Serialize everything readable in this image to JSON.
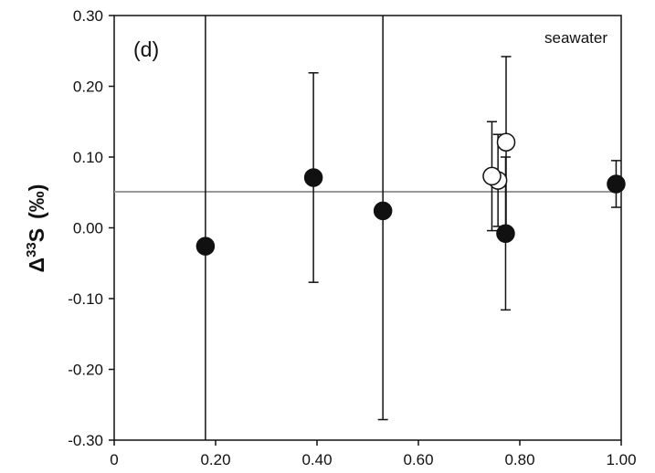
{
  "chart_data": {
    "type": "scatter",
    "panel_label": "(d)",
    "annotation": "seawater",
    "ylabel": {
      "prefix": "Δ",
      "superscript": "33",
      "symbol": "S",
      "unit": "(‰)"
    },
    "xlabel": "",
    "xlim": [
      0.0,
      1.0
    ],
    "ylim": [
      -0.3,
      0.3
    ],
    "xticks": [
      {
        "value": 0.0,
        "label": "0"
      },
      {
        "value": 0.2,
        "label": "0.20"
      },
      {
        "value": 0.4,
        "label": "0.40"
      },
      {
        "value": 0.6,
        "label": "0.60"
      },
      {
        "value": 0.8,
        "label": "0.80"
      },
      {
        "value": 1.0,
        "label": "1.00"
      }
    ],
    "yticks": [
      {
        "value": 0.3,
        "label": "0.30"
      },
      {
        "value": 0.2,
        "label": "0.20"
      },
      {
        "value": 0.1,
        "label": "0.10"
      },
      {
        "value": 0.0,
        "label": "0.00"
      },
      {
        "value": -0.1,
        "label": "-0.10"
      },
      {
        "value": -0.2,
        "label": "-0.20"
      },
      {
        "value": -0.3,
        "label": "-0.30"
      }
    ],
    "reference_line": {
      "y": 0.051,
      "color": "#999999"
    },
    "series": [
      {
        "marker": "filled",
        "color": "#111111",
        "points": [
          {
            "x": 0.18,
            "y": -0.026,
            "ylow": -0.3,
            "yhigh": 0.3
          },
          {
            "x": 0.393,
            "y": 0.071,
            "ylow": -0.077,
            "yhigh": 0.219
          },
          {
            "x": 0.53,
            "y": 0.024,
            "ylow": -0.271,
            "yhigh": 0.3
          },
          {
            "x": 0.772,
            "y": -0.008,
            "ylow": -0.116,
            "yhigh": 0.1
          },
          {
            "x": 0.99,
            "y": 0.062,
            "ylow": 0.029,
            "yhigh": 0.095
          }
        ]
      },
      {
        "marker": "open",
        "color": "#111111",
        "points": [
          {
            "x": 0.757,
            "y": 0.067,
            "ylow": 0.002,
            "yhigh": 0.132
          },
          {
            "x": 0.745,
            "y": 0.073,
            "ylow": -0.004,
            "yhigh": 0.15
          },
          {
            "x": 0.773,
            "y": 0.121,
            "ylow": 0.0,
            "yhigh": 0.242
          }
        ]
      }
    ]
  }
}
